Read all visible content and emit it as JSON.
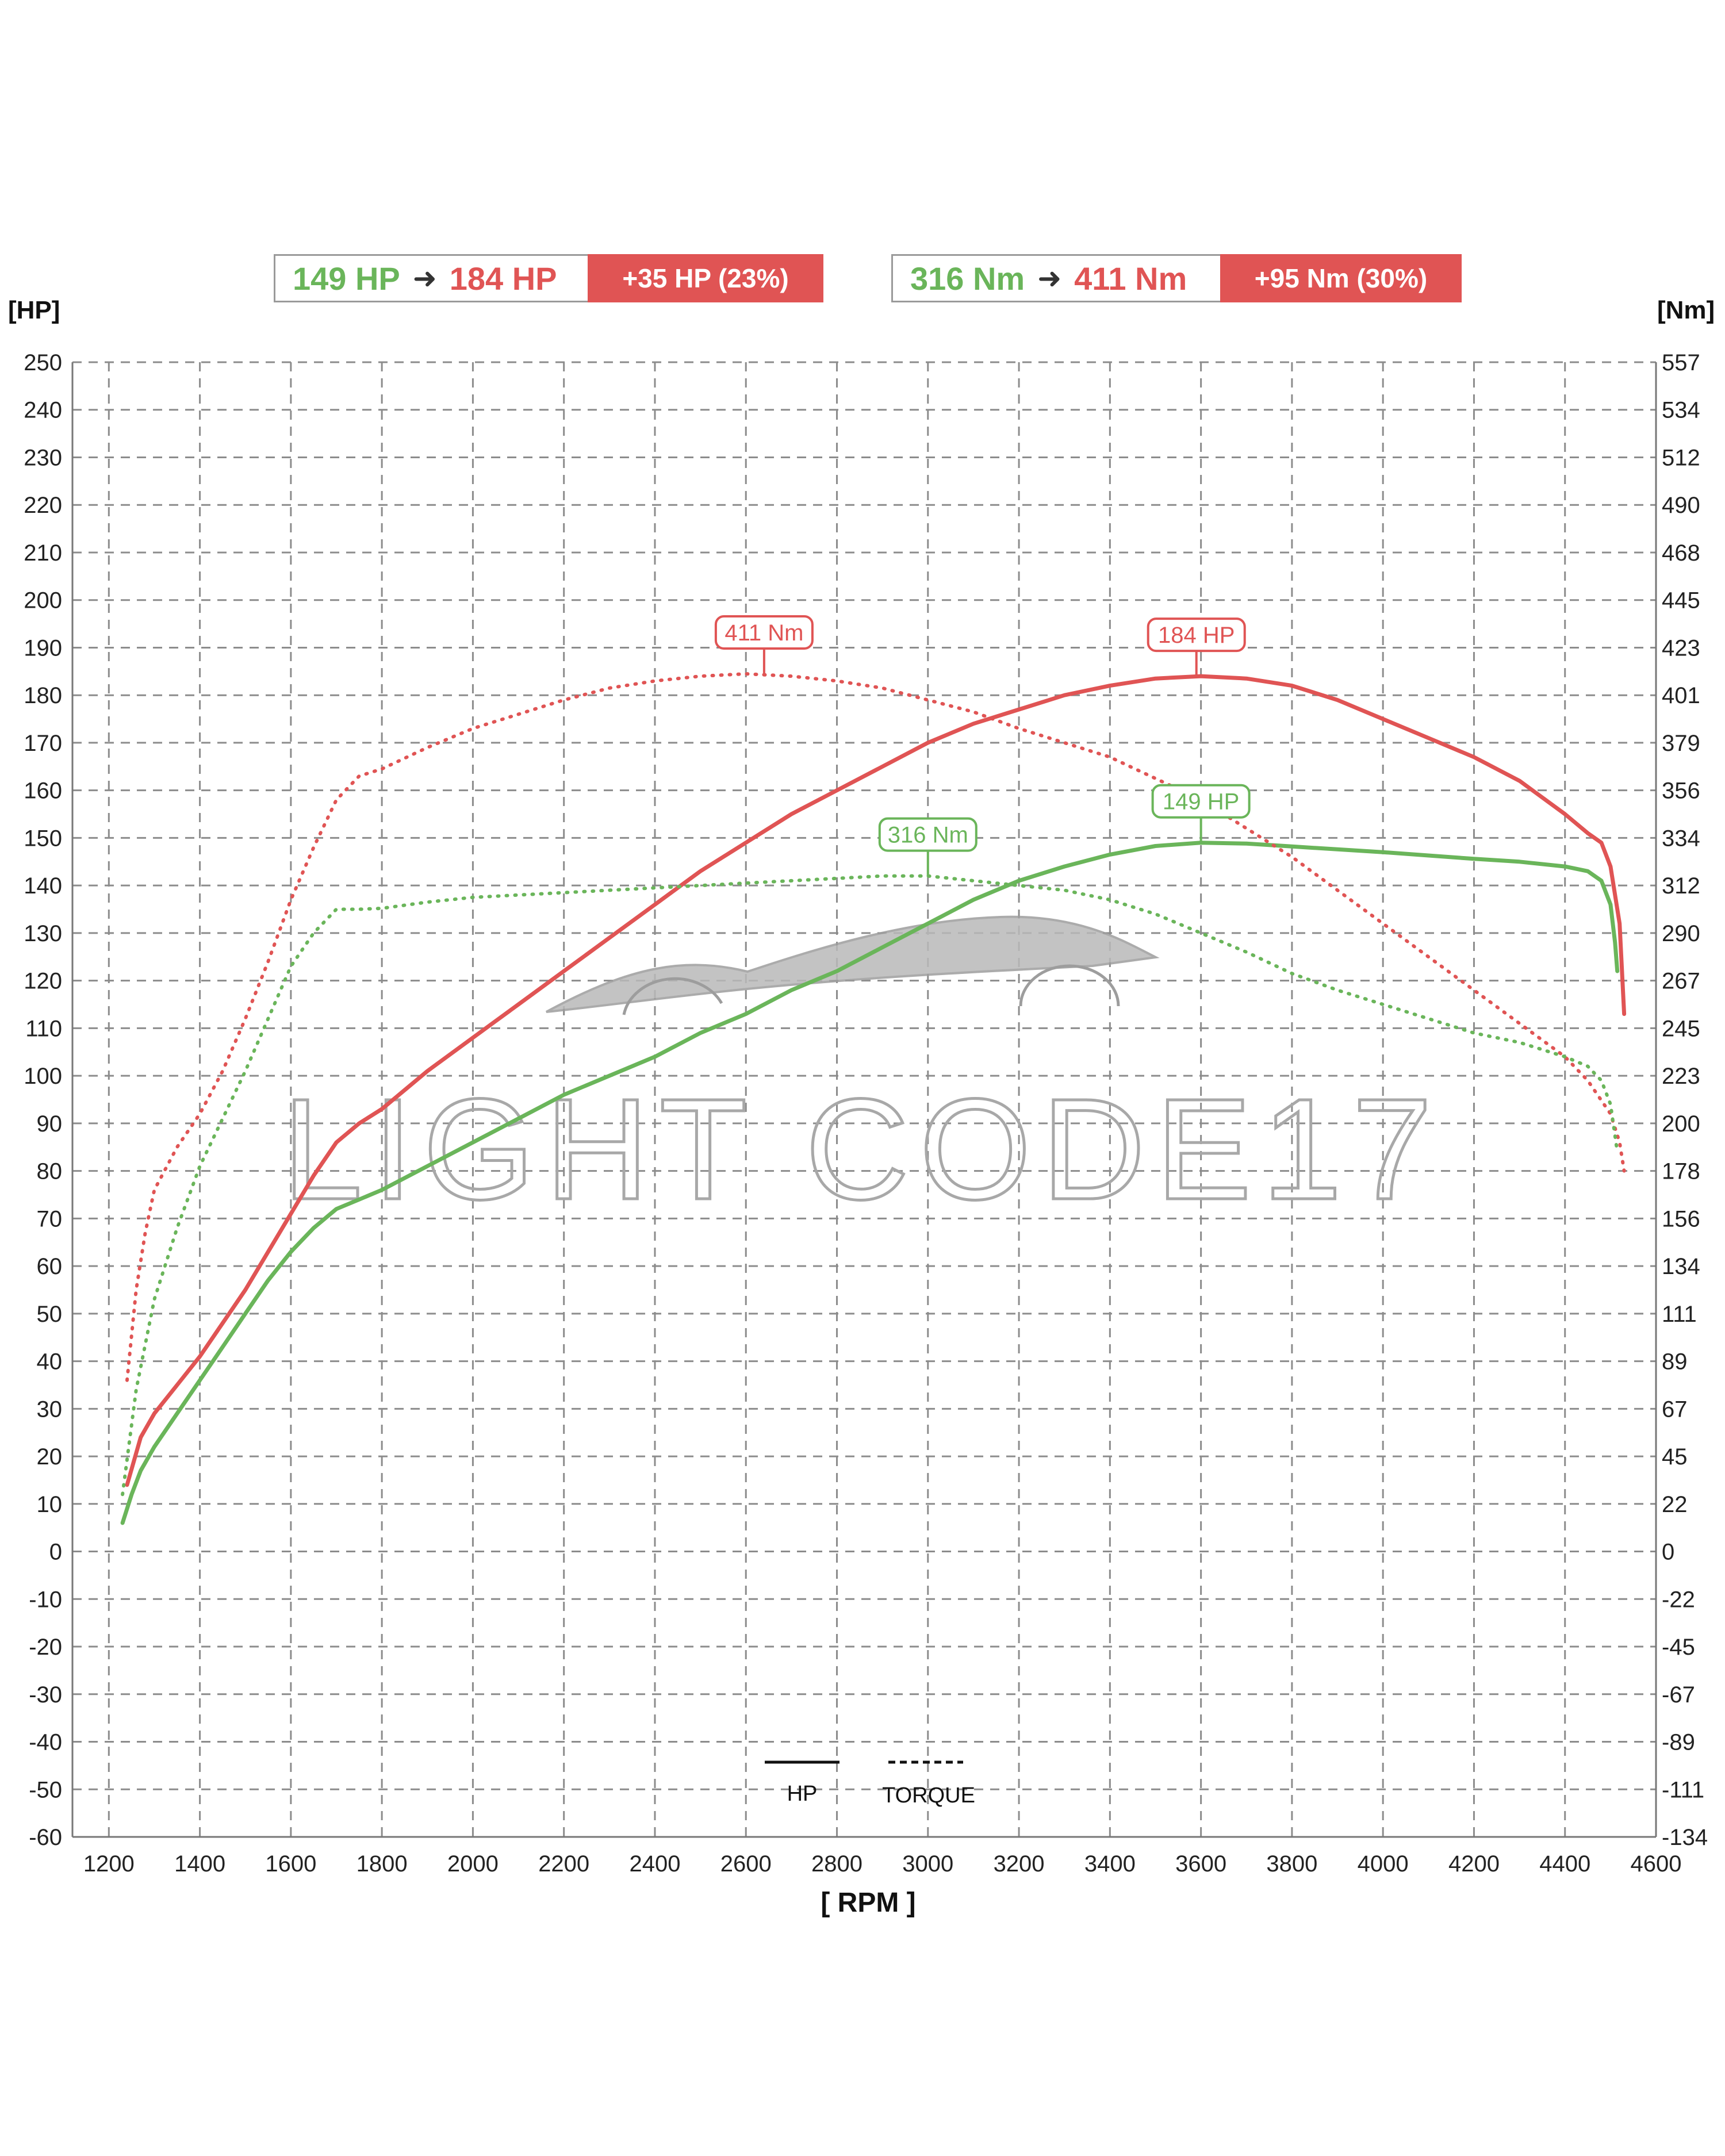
{
  "summary": {
    "power": {
      "from": "149 HP",
      "to": "184 HP",
      "delta": "+35 HP  (23%)"
    },
    "torque": {
      "from": "316 Nm",
      "to": "411 Nm",
      "delta": "+95 Nm  (30%)"
    }
  },
  "watermark": "LIGHT CODE17",
  "colors": {
    "stock": "#6ab55a",
    "tuned": "#e05454",
    "grid": "#8c8c8c"
  },
  "legend": {
    "hp_label": "HP",
    "torque_label": "TORQUE"
  },
  "chart_data": {
    "type": "line",
    "xlabel": "[ RPM ]",
    "ylabel": "[HP]",
    "y2label": "[Nm]",
    "xlim": [
      1120,
      4600
    ],
    "ylim": [
      -60,
      250
    ],
    "grid": true,
    "x_ticks": [
      1200,
      1400,
      1600,
      1800,
      2000,
      2200,
      2400,
      2600,
      2800,
      3000,
      3200,
      3400,
      3600,
      3800,
      4000,
      4200,
      4400,
      4600
    ],
    "y_ticks": [
      250,
      240,
      230,
      220,
      210,
      200,
      190,
      180,
      170,
      160,
      150,
      140,
      130,
      120,
      110,
      100,
      90,
      80,
      70,
      60,
      50,
      40,
      30,
      20,
      10,
      0,
      -10,
      -20,
      -30,
      -40,
      -50,
      -60
    ],
    "y2_ticks": [
      "557",
      "534",
      "512",
      "490",
      "468",
      "445",
      "423",
      "401",
      "379",
      "356",
      "334",
      "312",
      "290",
      "267",
      "245",
      "223",
      "200",
      "178",
      "156",
      "134",
      "111",
      "89",
      "67",
      "45",
      "22",
      "0",
      "-22",
      "-45",
      "-67",
      "-89",
      "-111",
      "-134"
    ],
    "series": [
      {
        "name": "184 HP",
        "metric": "HP",
        "tune": "tuned",
        "style": "solid",
        "x": [
          1240,
          1270,
          1300,
          1350,
          1400,
          1450,
          1500,
          1550,
          1600,
          1650,
          1700,
          1750,
          1800,
          1850,
          1900,
          2000,
          2100,
          2200,
          2300,
          2400,
          2500,
          2600,
          2700,
          2800,
          2900,
          3000,
          3100,
          3200,
          3300,
          3400,
          3500,
          3600,
          3700,
          3800,
          3900,
          4000,
          4100,
          4200,
          4300,
          4400,
          4450,
          4480,
          4500,
          4520,
          4530
        ],
        "y": [
          14,
          24,
          29,
          35,
          41,
          48,
          55,
          63,
          71,
          79,
          86,
          90,
          93,
          97,
          101,
          108,
          115,
          122,
          129,
          136,
          143,
          149,
          155,
          160,
          165,
          170,
          174,
          177,
          180,
          182,
          183.5,
          184,
          183.5,
          182,
          179,
          175,
          171,
          167,
          162,
          155,
          151,
          149,
          144,
          132,
          113
        ]
      },
      {
        "name": "149 HP",
        "metric": "HP",
        "tune": "stock",
        "style": "solid",
        "x": [
          1230,
          1250,
          1270,
          1300,
          1350,
          1400,
          1450,
          1500,
          1550,
          1600,
          1650,
          1700,
          1750,
          1800,
          1900,
          2000,
          2100,
          2200,
          2300,
          2400,
          2500,
          2600,
          2700,
          2800,
          2900,
          3000,
          3100,
          3200,
          3300,
          3400,
          3500,
          3600,
          3700,
          3800,
          3900,
          4000,
          4100,
          4200,
          4300,
          4400,
          4450,
          4480,
          4500,
          4510,
          4515
        ],
        "y": [
          6,
          12,
          17,
          22,
          29,
          36,
          43,
          50,
          57,
          63,
          68,
          72,
          74,
          76,
          81,
          86,
          91,
          96,
          100,
          104,
          109,
          113,
          118,
          122,
          127,
          132,
          137,
          141,
          144,
          146.5,
          148.3,
          149,
          148.8,
          148.2,
          147.6,
          147,
          146.3,
          145.6,
          145,
          144,
          143,
          141,
          136,
          128,
          122
        ]
      },
      {
        "name": "411 Nm",
        "metric": "TORQUE",
        "tune": "tuned",
        "style": "dotted",
        "x": [
          1240,
          1260,
          1280,
          1300,
          1350,
          1400,
          1450,
          1500,
          1550,
          1600,
          1650,
          1700,
          1750,
          1800,
          1900,
          2000,
          2100,
          2200,
          2300,
          2400,
          2500,
          2600,
          2700,
          2800,
          2900,
          3000,
          3100,
          3200,
          3300,
          3400,
          3500,
          3600,
          3700,
          3800,
          3900,
          4000,
          4100,
          4200,
          4300,
          4400,
          4450,
          4500,
          4520,
          4530
        ],
        "y": [
          36,
          55,
          67,
          76,
          85,
          92,
          101,
          112,
          124,
          137,
          148,
          158,
          163,
          164.5,
          169,
          173,
          176,
          179,
          181.5,
          183,
          184,
          184.5,
          184,
          183,
          181.5,
          179,
          176.5,
          173,
          170,
          167,
          162.5,
          158,
          152,
          146,
          139,
          132,
          125,
          118,
          111,
          104,
          99,
          92,
          86,
          80
        ]
      },
      {
        "name": "316 Nm",
        "metric": "TORQUE",
        "tune": "stock",
        "style": "dotted",
        "x": [
          1230,
          1260,
          1300,
          1350,
          1400,
          1450,
          1500,
          1550,
          1600,
          1650,
          1700,
          1750,
          1800,
          1900,
          2000,
          2100,
          2200,
          2300,
          2400,
          2500,
          2600,
          2700,
          2800,
          2900,
          3000,
          3100,
          3200,
          3300,
          3400,
          3500,
          3600,
          3700,
          3800,
          3900,
          4000,
          4100,
          4200,
          4300,
          4400,
          4450,
          4480,
          4500,
          4515
        ],
        "y": [
          12,
          34,
          53,
          68,
          81,
          91,
          101,
          112,
          123,
          130,
          135,
          135,
          135.2,
          136.5,
          137.5,
          138,
          138.5,
          139,
          139.5,
          140,
          140.5,
          141,
          141.5,
          142,
          142,
          141,
          140,
          139,
          137,
          134,
          130,
          126,
          121.5,
          118,
          115,
          112,
          109,
          107,
          104,
          102,
          99,
          94,
          84
        ]
      }
    ],
    "annotations": [
      {
        "text": "411 Nm",
        "x": 2640,
        "y": 184.5,
        "series": "tuned"
      },
      {
        "text": "184 HP",
        "x": 3590,
        "y": 184,
        "series": "tuned"
      },
      {
        "text": "316 Nm",
        "x": 3000,
        "y": 142,
        "series": "stock"
      },
      {
        "text": "149 HP",
        "x": 3600,
        "y": 149,
        "series": "stock"
      }
    ]
  }
}
